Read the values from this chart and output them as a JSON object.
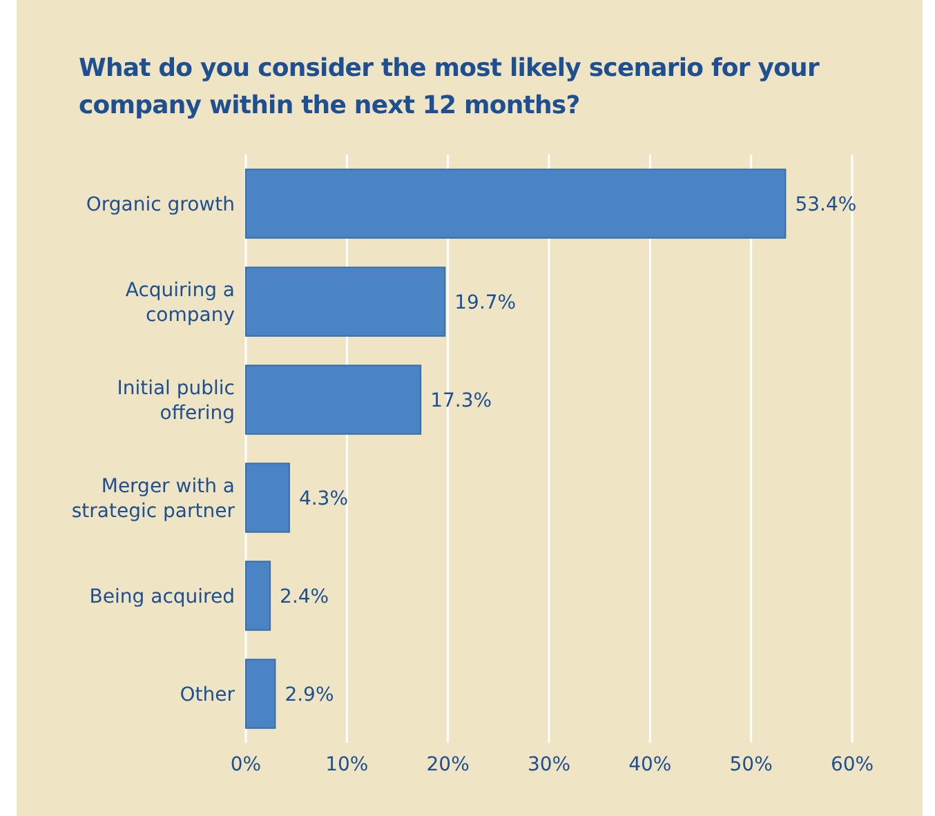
{
  "chart_data": {
    "type": "bar",
    "orientation": "horizontal",
    "title": "What do you consider the most likely scenario for your company within the next 12 months?",
    "categories": [
      "Organic growth",
      "Acquiring a company",
      "Initial public offering",
      "Merger with a strategic partner",
      "Being acquired",
      "Other"
    ],
    "values": [
      53.4,
      19.7,
      17.3,
      4.3,
      2.4,
      2.9
    ],
    "value_labels": [
      "53.4%",
      "19.7%",
      "17.3%",
      "4.3%",
      "2.4%",
      "2.9%"
    ],
    "color": "#4a84c4",
    "xlim": [
      0,
      60
    ],
    "xticks": [
      {
        "value": 0,
        "label": "0%"
      },
      {
        "value": 10,
        "label": "10%"
      },
      {
        "value": 20,
        "label": "20%"
      },
      {
        "value": 30,
        "label": "30%"
      },
      {
        "value": 40,
        "label": "40%"
      },
      {
        "value": 50,
        "label": "50%"
      },
      {
        "value": 60,
        "label": "60%"
      }
    ],
    "grid": "x"
  }
}
